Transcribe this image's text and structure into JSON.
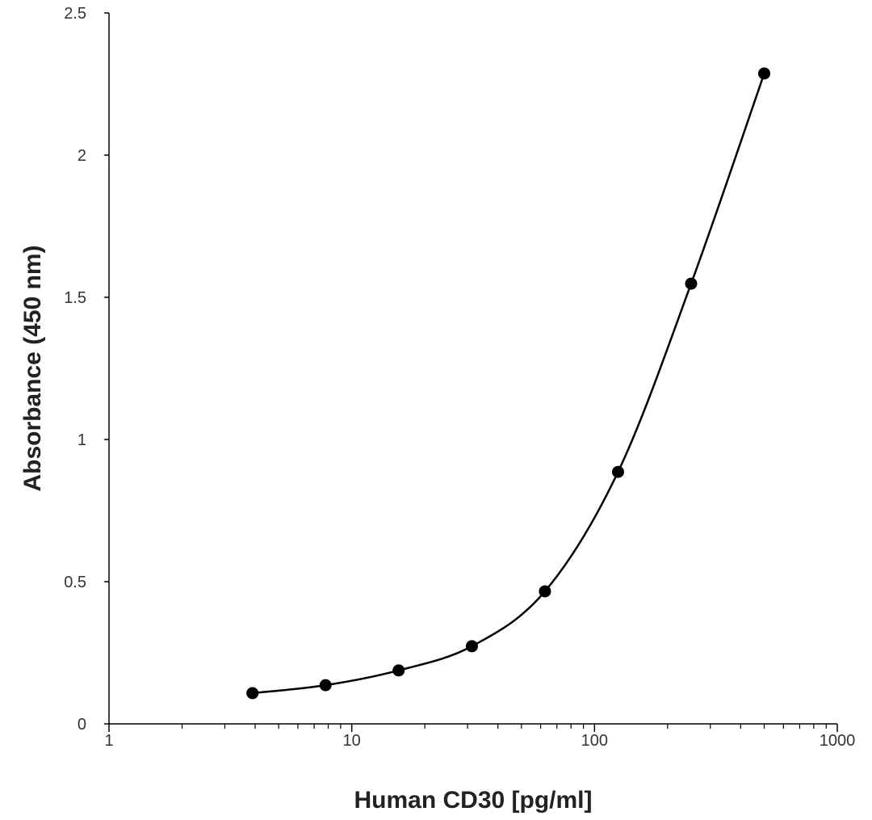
{
  "chart_data": {
    "type": "scatter",
    "title": "",
    "xlabel": "Human CD30 [pg/ml]",
    "ylabel": "Absorbance (450 nm)",
    "xscale": "log",
    "xlim": [
      1,
      1000
    ],
    "ylim": [
      0,
      2.5
    ],
    "xticks": [
      "1",
      "10",
      "100",
      "1000"
    ],
    "yticks": [
      "0",
      "0.5",
      "1",
      "1.5",
      "2",
      "2.5"
    ],
    "grid": false,
    "legend": "none",
    "connect": "smooth-line",
    "colors": {
      "series": "#000000",
      "axis": "#000000"
    },
    "series": [
      {
        "x": [
          3.9,
          7.8,
          15.6,
          31.25,
          62.5,
          125,
          250,
          500
        ],
        "y": [
          0.108,
          0.136,
          0.188,
          0.273,
          0.466,
          0.886,
          1.548,
          2.287
        ]
      }
    ]
  }
}
